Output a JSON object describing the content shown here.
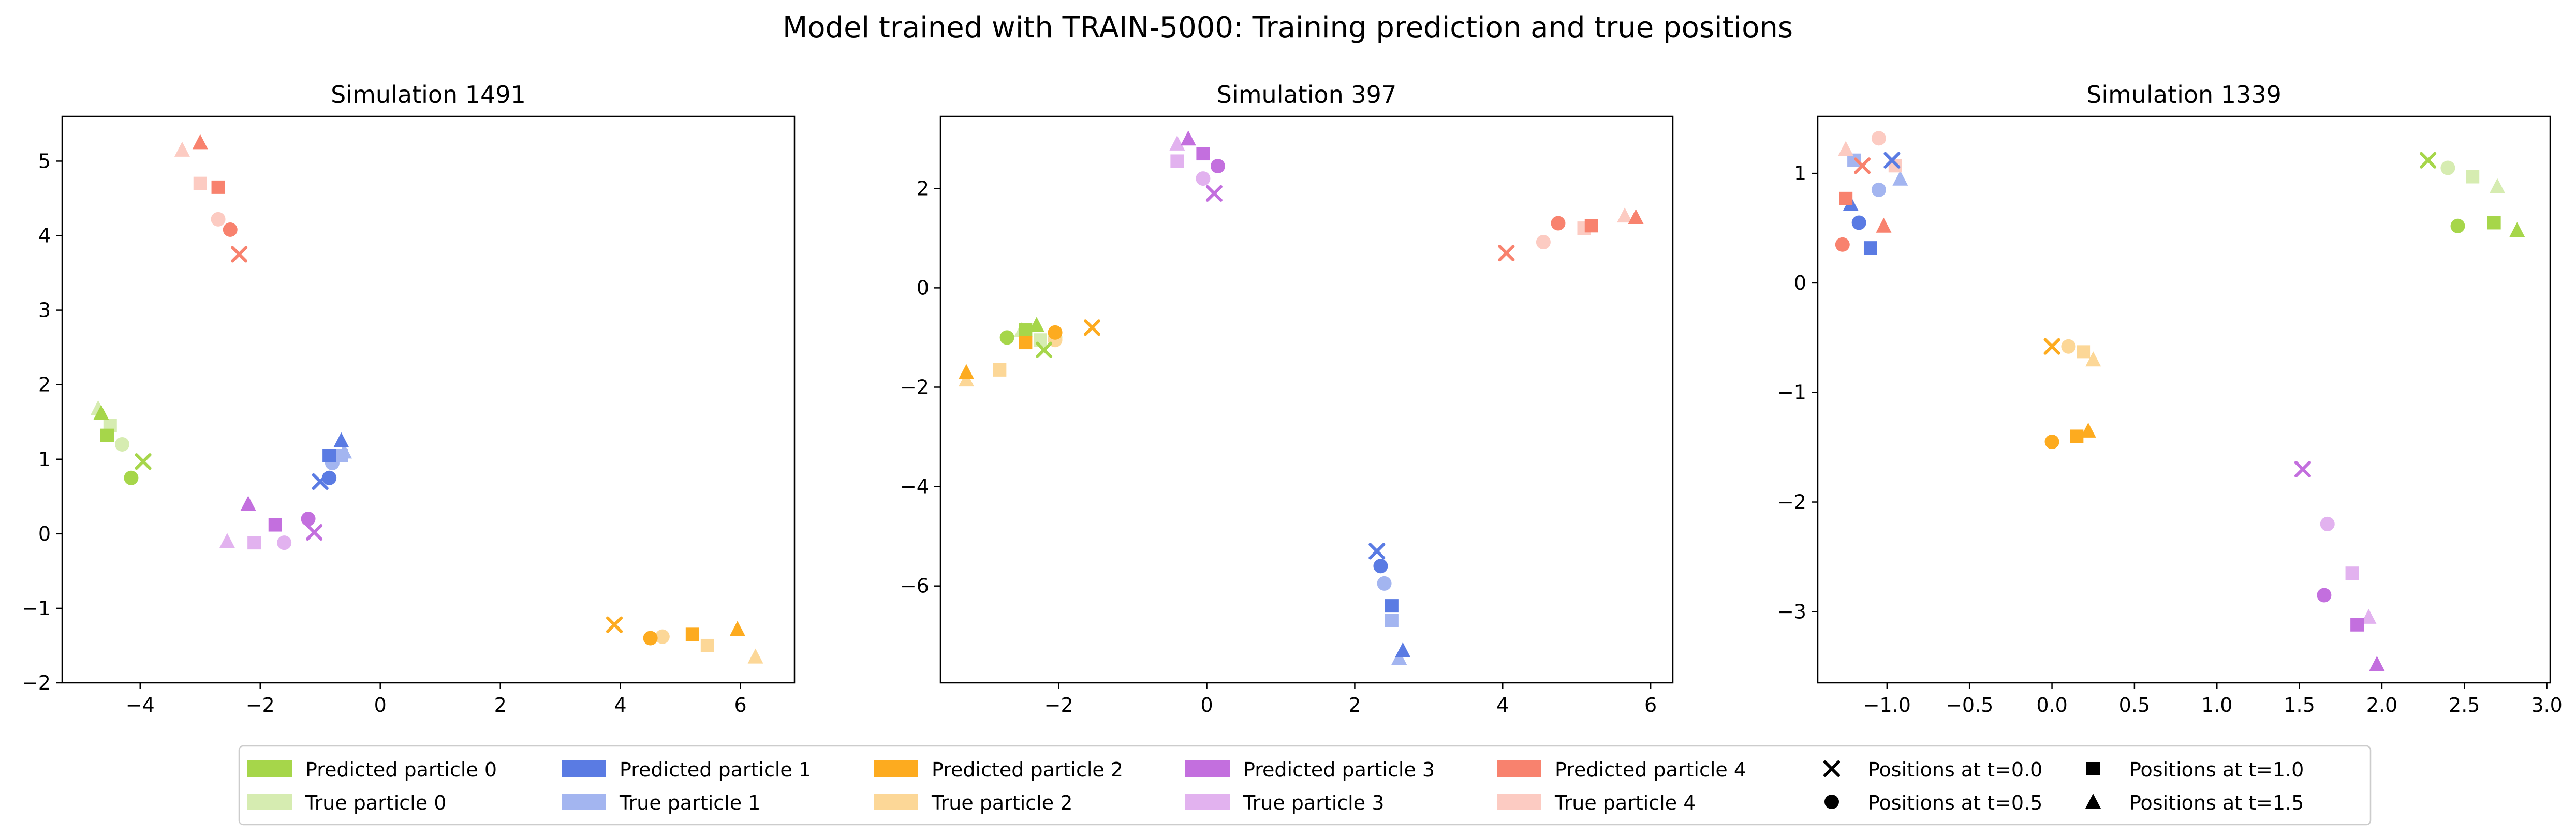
{
  "suptitle": "Model trained with TRAIN-5000: Training prediction and true positions",
  "colors": {
    "pred": [
      "#a6d64a",
      "#5a7be3",
      "#fdab1f",
      "#c36fde",
      "#f8826e"
    ],
    "true": [
      "#d6ecb1",
      "#a3b5f0",
      "#fcd797",
      "#e2b2ef",
      "#fccbc2"
    ]
  },
  "legend": {
    "entries": [
      {
        "label": "Predicted particle 0",
        "kind": "pred",
        "particle": 0
      },
      {
        "label": "True particle 0",
        "kind": "true",
        "particle": 0
      },
      {
        "label": "Predicted particle 1",
        "kind": "pred",
        "particle": 1
      },
      {
        "label": "True particle 1",
        "kind": "true",
        "particle": 1
      },
      {
        "label": "Predicted particle 2",
        "kind": "pred",
        "particle": 2
      },
      {
        "label": "True particle 2",
        "kind": "true",
        "particle": 2
      },
      {
        "label": "Predicted particle 3",
        "kind": "pred",
        "particle": 3
      },
      {
        "label": "True particle 3",
        "kind": "true",
        "particle": 3
      },
      {
        "label": "Predicted particle 4",
        "kind": "pred",
        "particle": 4
      },
      {
        "label": "True particle 4",
        "kind": "true",
        "particle": 4
      },
      {
        "label": "Positions at t=0.0",
        "marker": "x"
      },
      {
        "label": "Positions at t=0.5",
        "marker": "circle"
      },
      {
        "label": "Positions at t=1.0",
        "marker": "square"
      },
      {
        "label": "Positions at t=1.5",
        "marker": "triangle"
      }
    ]
  },
  "chart_data": [
    {
      "type": "scatter",
      "title": "Simulation 1491",
      "xlabel": "",
      "ylabel": "",
      "xlim": [
        -5.3,
        6.9
      ],
      "ylim": [
        -2.0,
        5.6
      ],
      "xticks": [
        -4,
        -2,
        0,
        2,
        4,
        6
      ],
      "yticks": [
        -2,
        -1,
        0,
        1,
        2,
        3,
        4,
        5
      ],
      "marker_order": [
        "x",
        "circle",
        "square",
        "triangle"
      ],
      "time_labels": [
        "t=0.0",
        "t=0.5",
        "t=1.0",
        "t=1.5"
      ],
      "series": [
        {
          "particle": 0,
          "kind": "true",
          "points": [
            [
              -3.95,
              0.97
            ],
            [
              -4.3,
              1.2
            ],
            [
              -4.5,
              1.45
            ],
            [
              -4.7,
              1.68
            ]
          ]
        },
        {
          "particle": 0,
          "kind": "pred",
          "points": [
            [
              -3.95,
              0.97
            ],
            [
              -4.15,
              0.75
            ],
            [
              -4.55,
              1.32
            ],
            [
              -4.65,
              1.62
            ]
          ]
        },
        {
          "particle": 1,
          "kind": "true",
          "points": [
            [
              -1.0,
              0.7
            ],
            [
              -0.8,
              0.95
            ],
            [
              -0.65,
              1.05
            ],
            [
              -0.6,
              1.1
            ]
          ]
        },
        {
          "particle": 1,
          "kind": "pred",
          "points": [
            [
              -1.0,
              0.7
            ],
            [
              -0.85,
              0.75
            ],
            [
              -0.85,
              1.05
            ],
            [
              -0.65,
              1.25
            ]
          ]
        },
        {
          "particle": 2,
          "kind": "true",
          "points": [
            [
              3.9,
              -1.22
            ],
            [
              4.7,
              -1.38
            ],
            [
              5.45,
              -1.5
            ],
            [
              6.25,
              -1.65
            ]
          ]
        },
        {
          "particle": 2,
          "kind": "pred",
          "points": [
            [
              3.9,
              -1.22
            ],
            [
              4.5,
              -1.4
            ],
            [
              5.2,
              -1.35
            ],
            [
              5.95,
              -1.28
            ]
          ]
        },
        {
          "particle": 3,
          "kind": "true",
          "points": [
            [
              -1.1,
              0.02
            ],
            [
              -1.6,
              -0.12
            ],
            [
              -2.1,
              -0.12
            ],
            [
              -2.55,
              -0.1
            ]
          ]
        },
        {
          "particle": 3,
          "kind": "pred",
          "points": [
            [
              -1.1,
              0.02
            ],
            [
              -1.2,
              0.2
            ],
            [
              -1.75,
              0.12
            ],
            [
              -2.2,
              0.4
            ]
          ]
        },
        {
          "particle": 4,
          "kind": "true",
          "points": [
            [
              -2.35,
              3.75
            ],
            [
              -2.7,
              4.22
            ],
            [
              -3.0,
              4.7
            ],
            [
              -3.3,
              5.15
            ]
          ]
        },
        {
          "particle": 4,
          "kind": "pred",
          "points": [
            [
              -2.35,
              3.75
            ],
            [
              -2.5,
              4.08
            ],
            [
              -2.7,
              4.65
            ],
            [
              -3.0,
              5.25
            ]
          ]
        }
      ]
    },
    {
      "type": "scatter",
      "title": "Simulation 397",
      "xlabel": "",
      "ylabel": "",
      "xlim": [
        -3.6,
        6.3
      ],
      "ylim": [
        -7.95,
        3.45
      ],
      "xticks": [
        -2,
        0,
        2,
        4,
        6
      ],
      "yticks": [
        -6,
        -4,
        -2,
        0,
        2
      ],
      "marker_order": [
        "x",
        "circle",
        "square",
        "triangle"
      ],
      "time_labels": [
        "t=0.0",
        "t=0.5",
        "t=1.0",
        "t=1.5"
      ],
      "series": [
        {
          "particle": 0,
          "kind": "true",
          "points": [
            [
              -2.2,
              -1.25
            ],
            [
              -2.05,
              -1.0
            ],
            [
              -2.25,
              -1.05
            ],
            [
              -2.5,
              -0.85
            ]
          ]
        },
        {
          "particle": 0,
          "kind": "pred",
          "points": [
            [
              -2.2,
              -1.25
            ],
            [
              -2.7,
              -1.0
            ],
            [
              -2.45,
              -0.85
            ],
            [
              -2.3,
              -0.75
            ]
          ]
        },
        {
          "particle": 1,
          "kind": "true",
          "points": [
            [
              2.3,
              -5.3
            ],
            [
              2.4,
              -5.95
            ],
            [
              2.5,
              -6.7
            ],
            [
              2.6,
              -7.45
            ]
          ]
        },
        {
          "particle": 1,
          "kind": "pred",
          "points": [
            [
              2.3,
              -5.3
            ],
            [
              2.35,
              -5.6
            ],
            [
              2.5,
              -6.4
            ],
            [
              2.65,
              -7.3
            ]
          ]
        },
        {
          "particle": 2,
          "kind": "true",
          "points": [
            [
              -1.55,
              -0.8
            ],
            [
              -2.05,
              -1.05
            ],
            [
              -2.8,
              -1.65
            ],
            [
              -3.25,
              -1.85
            ]
          ]
        },
        {
          "particle": 2,
          "kind": "pred",
          "points": [
            [
              -1.55,
              -0.8
            ],
            [
              -2.05,
              -0.9
            ],
            [
              -2.45,
              -1.1
            ],
            [
              -3.25,
              -1.7
            ]
          ]
        },
        {
          "particle": 3,
          "kind": "true",
          "points": [
            [
              0.1,
              1.9
            ],
            [
              -0.05,
              2.2
            ],
            [
              -0.4,
              2.55
            ],
            [
              -0.4,
              2.9
            ]
          ]
        },
        {
          "particle": 3,
          "kind": "pred",
          "points": [
            [
              0.1,
              1.9
            ],
            [
              0.15,
              2.45
            ],
            [
              -0.05,
              2.7
            ],
            [
              -0.25,
              3.0
            ]
          ]
        },
        {
          "particle": 4,
          "kind": "true",
          "points": [
            [
              4.05,
              0.7
            ],
            [
              4.55,
              0.92
            ],
            [
              5.1,
              1.2
            ],
            [
              5.65,
              1.45
            ]
          ]
        },
        {
          "particle": 4,
          "kind": "pred",
          "points": [
            [
              4.05,
              0.7
            ],
            [
              4.75,
              1.3
            ],
            [
              5.2,
              1.25
            ],
            [
              5.8,
              1.42
            ]
          ]
        }
      ]
    },
    {
      "type": "scatter",
      "title": "Simulation 1339",
      "xlabel": "",
      "ylabel": "",
      "xlim": [
        -1.42,
        3.02
      ],
      "ylim": [
        -3.65,
        1.52
      ],
      "xticks": [
        -1.0,
        -0.5,
        0.0,
        0.5,
        1.0,
        1.5,
        2.0,
        2.5,
        3.0
      ],
      "yticks": [
        -3,
        -2,
        -1,
        0,
        1
      ],
      "marker_order": [
        "x",
        "circle",
        "square",
        "triangle"
      ],
      "time_labels": [
        "t=0.0",
        "t=0.5",
        "t=1.0",
        "t=1.5"
      ],
      "series": [
        {
          "particle": 0,
          "kind": "true",
          "points": [
            [
              2.28,
              1.12
            ],
            [
              2.4,
              1.05
            ],
            [
              2.55,
              0.97
            ],
            [
              2.7,
              0.88
            ]
          ]
        },
        {
          "particle": 0,
          "kind": "pred",
          "points": [
            [
              2.28,
              1.12
            ],
            [
              2.46,
              0.52
            ],
            [
              2.68,
              0.55
            ],
            [
              2.82,
              0.48
            ]
          ]
        },
        {
          "particle": 1,
          "kind": "true",
          "points": [
            [
              -0.97,
              1.12
            ],
            [
              -1.05,
              0.85
            ],
            [
              -1.2,
              1.12
            ],
            [
              -0.92,
              0.95
            ]
          ]
        },
        {
          "particle": 1,
          "kind": "pred",
          "points": [
            [
              -0.97,
              1.12
            ],
            [
              -1.17,
              0.55
            ],
            [
              -1.1,
              0.32
            ],
            [
              -1.22,
              0.72
            ]
          ]
        },
        {
          "particle": 2,
          "kind": "true",
          "points": [
            [
              0.0,
              -0.58
            ],
            [
              0.1,
              -0.58
            ],
            [
              0.19,
              -0.63
            ],
            [
              0.25,
              -0.7
            ]
          ]
        },
        {
          "particle": 2,
          "kind": "pred",
          "points": [
            [
              0.0,
              -0.58
            ],
            [
              0.0,
              -1.45
            ],
            [
              0.15,
              -1.4
            ],
            [
              0.22,
              -1.35
            ]
          ]
        },
        {
          "particle": 3,
          "kind": "true",
          "points": [
            [
              1.52,
              -1.7
            ],
            [
              1.67,
              -2.2
            ],
            [
              1.82,
              -2.65
            ],
            [
              1.92,
              -3.05
            ]
          ]
        },
        {
          "particle": 3,
          "kind": "pred",
          "points": [
            [
              1.52,
              -1.7
            ],
            [
              1.65,
              -2.85
            ],
            [
              1.85,
              -3.12
            ],
            [
              1.97,
              -3.48
            ]
          ]
        },
        {
          "particle": 4,
          "kind": "true",
          "points": [
            [
              -1.15,
              1.07
            ],
            [
              -1.05,
              1.32
            ],
            [
              -0.95,
              1.07
            ],
            [
              -1.25,
              1.22
            ]
          ]
        },
        {
          "particle": 4,
          "kind": "pred",
          "points": [
            [
              -1.15,
              1.07
            ],
            [
              -1.27,
              0.35
            ],
            [
              -1.25,
              0.77
            ],
            [
              -1.02,
              0.52
            ]
          ]
        }
      ]
    }
  ]
}
